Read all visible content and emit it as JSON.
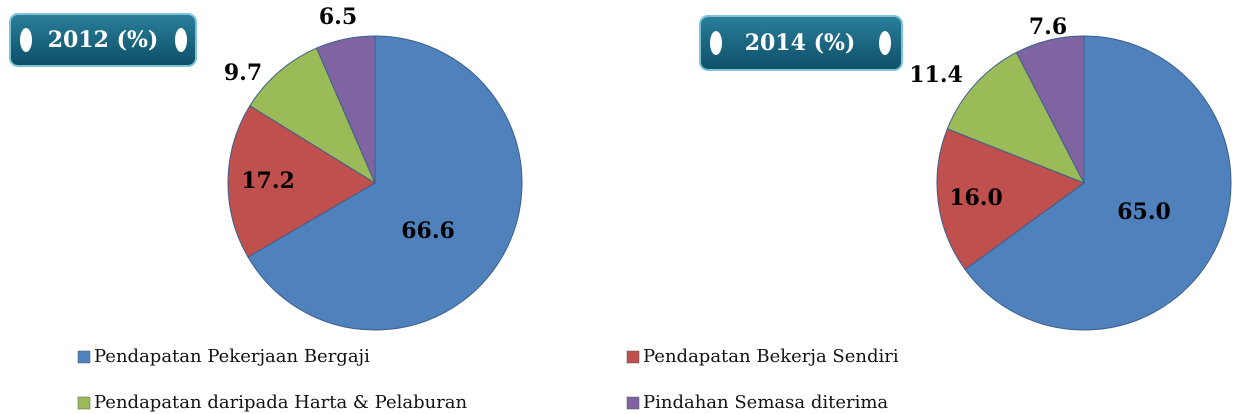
{
  "legend": {
    "categories": [
      "Pendapatan Pekerjaan Bergaji",
      "Pendapatan Bekerja Sendiri",
      "Pendapatan daripada Harta & Pelaburan",
      "Pindahan Semasa diterima"
    ],
    "colors": [
      "#4f81bd",
      "#c0504d",
      "#9bbb59",
      "#8064a2"
    ]
  },
  "chart_data": [
    {
      "type": "pie",
      "title": "2012 (%)",
      "values": [
        66.6,
        17.2,
        9.7,
        6.5
      ]
    },
    {
      "type": "pie",
      "title": "2014 (%)",
      "values": [
        65.0,
        16.0,
        11.4,
        7.6
      ],
      "value_labels": [
        "65.0",
        "16.0",
        "11.4",
        "7.6"
      ]
    }
  ]
}
